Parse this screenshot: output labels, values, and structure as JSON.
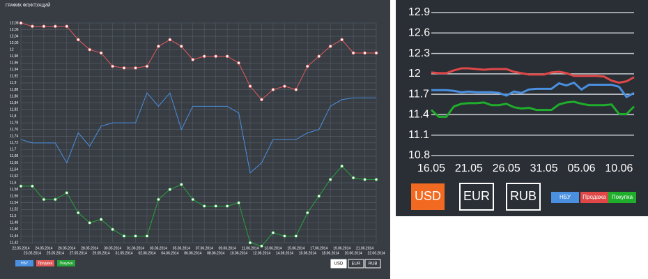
{
  "chart_data": [
    {
      "type": "line",
      "title": "ГРАФИК ФЛУКТУАЦИЙ",
      "categories": [
        "22.05.2014",
        "23.05.2014",
        "24.05.2014",
        "25.05.2014",
        "26.05.2014",
        "27.05.2014",
        "28.05.2014",
        "29.05.2014",
        "30.05.2014",
        "31.05.2014",
        "01.06.2014",
        "02.06.2014",
        "03.06.2014",
        "04.06.2014",
        "05.06.2014",
        "06.06.2014",
        "07.06.2014",
        "08.06.2014",
        "09.06.2014",
        "10.06.2014",
        "11.06.2014",
        "12.06.2014",
        "13.06.2014",
        "14.06.2014",
        "15.06.2014",
        "16.06.2014",
        "17.06.2014",
        "18.06.2014",
        "19.06.2014",
        "20.06.2014",
        "21.06.2014",
        "22.06.2014"
      ],
      "series": [
        {
          "name": "НБУ",
          "color": "#4a8fe0",
          "markers": false,
          "values": [
            11.73,
            11.72,
            11.72,
            11.72,
            11.66,
            11.75,
            11.71,
            11.77,
            11.78,
            11.78,
            11.78,
            11.87,
            11.83,
            11.87,
            11.76,
            11.83,
            11.83,
            11.83,
            11.83,
            11.81,
            11.63,
            11.66,
            11.73,
            11.73,
            11.73,
            11.75,
            11.76,
            11.83,
            11.85,
            11.855,
            11.855,
            11.855
          ]
        },
        {
          "name": "Продажа",
          "color": "#e05a5a",
          "markers": true,
          "values": [
            12.08,
            12.07,
            12.07,
            12.07,
            12.07,
            12.03,
            12.0,
            11.99,
            11.95,
            11.945,
            11.945,
            11.95,
            12.01,
            12.03,
            12.01,
            11.97,
            11.98,
            11.98,
            11.98,
            11.96,
            11.89,
            11.85,
            11.88,
            11.89,
            11.88,
            11.95,
            11.98,
            12.01,
            12.03,
            11.99,
            11.99,
            11.99
          ]
        },
        {
          "name": "Покупка",
          "color": "#27a33a",
          "markers": true,
          "values": [
            11.59,
            11.59,
            11.55,
            11.55,
            11.57,
            11.51,
            11.48,
            11.49,
            11.46,
            11.44,
            11.44,
            11.44,
            11.55,
            11.58,
            11.595,
            11.55,
            11.53,
            11.53,
            11.53,
            11.54,
            11.42,
            11.41,
            11.45,
            11.44,
            11.44,
            11.51,
            11.56,
            11.61,
            11.65,
            11.615,
            11.61,
            11.61
          ]
        }
      ],
      "ylim": [
        11.42,
        12.08
      ],
      "yticks": [
        {
          "value": 11.42,
          "label": "11,42"
        },
        {
          "value": 11.44,
          "label": "11,44"
        },
        {
          "value": 11.46,
          "label": "11,46"
        },
        {
          "value": 11.48,
          "label": "11,48"
        },
        {
          "value": 11.5,
          "label": "11,5"
        },
        {
          "value": 11.52,
          "label": "11,52"
        },
        {
          "value": 11.54,
          "label": "11,54"
        },
        {
          "value": 11.56,
          "label": "11,56"
        },
        {
          "value": 11.58,
          "label": "11,58"
        },
        {
          "value": 11.6,
          "label": "11,6"
        },
        {
          "value": 11.62,
          "label": "11,62"
        },
        {
          "value": 11.64,
          "label": "11,64"
        },
        {
          "value": 11.66,
          "label": "11,66"
        },
        {
          "value": 11.68,
          "label": "11,68"
        },
        {
          "value": 11.7,
          "label": "11,7"
        },
        {
          "value": 11.72,
          "label": "11,72"
        },
        {
          "value": 11.74,
          "label": "11,74"
        },
        {
          "value": 11.76,
          "label": "11,76"
        },
        {
          "value": 11.78,
          "label": "11,78"
        },
        {
          "value": 11.8,
          "label": "11,8"
        },
        {
          "value": 11.82,
          "label": "11,82"
        },
        {
          "value": 11.84,
          "label": "11,84"
        },
        {
          "value": 11.86,
          "label": "11,86"
        },
        {
          "value": 11.88,
          "label": "11,88"
        },
        {
          "value": 11.9,
          "label": "11,9"
        },
        {
          "value": 11.92,
          "label": "11,92"
        },
        {
          "value": 11.94,
          "label": "11,94"
        },
        {
          "value": 11.96,
          "label": "11,96"
        },
        {
          "value": 11.98,
          "label": "11,98"
        },
        12,
        {
          "value": 12.02,
          "label": "12,02"
        },
        {
          "value": 12.04,
          "label": "12,04"
        },
        {
          "value": 12.06,
          "label": "12,06"
        },
        {
          "value": 12.08,
          "label": "12,08"
        }
      ],
      "grid": true,
      "currency_buttons": [
        "USD",
        "EUR",
        "RUB"
      ]
    },
    {
      "type": "line",
      "categories": [
        "16.05",
        null,
        null,
        null,
        null,
        "21.05",
        null,
        null,
        null,
        null,
        "26.05",
        null,
        null,
        null,
        null,
        "31.05",
        null,
        null,
        null,
        null,
        "05.06",
        null,
        null,
        null,
        null,
        "10.06",
        null,
        null
      ],
      "series": [
        {
          "name": "НБУ",
          "color": "#4a8fe0",
          "values": [
            11.76,
            11.76,
            11.76,
            11.75,
            11.73,
            11.74,
            11.73,
            11.73,
            11.73,
            11.72,
            11.68,
            11.74,
            11.72,
            11.77,
            11.78,
            11.78,
            11.78,
            11.86,
            11.83,
            11.87,
            11.77,
            11.84,
            11.84,
            11.84,
            11.84,
            11.81,
            11.66,
            11.72
          ]
        },
        {
          "name": "Продажа",
          "color": "#e04848",
          "values": [
            12.02,
            12.01,
            12.01,
            12.05,
            12.08,
            12.08,
            12.07,
            12.06,
            12.07,
            12.07,
            12.07,
            12.03,
            12.01,
            11.99,
            11.99,
            11.99,
            12.02,
            12.03,
            12.01,
            11.97,
            11.97,
            11.97,
            11.97,
            11.96,
            11.9,
            11.87,
            11.89,
            11.95
          ]
        },
        {
          "name": "Покупка",
          "color": "#1fae2c",
          "values": [
            11.47,
            11.37,
            11.37,
            11.52,
            11.56,
            11.57,
            11.57,
            11.58,
            11.54,
            11.54,
            11.56,
            11.51,
            11.49,
            11.5,
            11.47,
            11.47,
            11.47,
            11.55,
            11.58,
            11.59,
            11.56,
            11.54,
            11.54,
            11.54,
            11.55,
            11.41,
            11.41,
            11.52
          ]
        }
      ],
      "ylim": [
        10.8,
        12.9
      ],
      "yticks": [
        10.8,
        11.1,
        11.4,
        11.7,
        12,
        12.3,
        12.6,
        12.9
      ],
      "grid": true,
      "currency_buttons": [
        "USD",
        "EUR",
        "RUB"
      ]
    }
  ]
}
